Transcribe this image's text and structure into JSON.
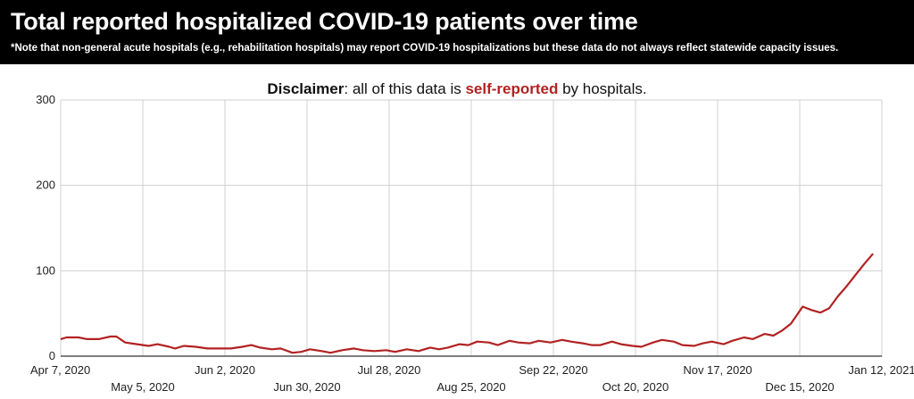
{
  "header": {
    "title": "Total reported hospitalized COVID-19 patients over time",
    "note": "*Note that non-general acute hospitals (e.g., rehabilitation hospitals) may report COVID-19 hospitalizations but these data do not always reflect statewide capacity issues."
  },
  "disclaimer": {
    "part1": "Disclaimer",
    "part2": ": all of this data is ",
    "part3": "self-reported",
    "part4": " by hospitals.",
    "emphasis_color": "#b22222"
  },
  "colors": {
    "header_bg": "#000000",
    "line": "#b22222",
    "grid": "#d0d0d0",
    "axis": "#333333"
  },
  "chart_data": {
    "type": "line",
    "title": "",
    "xlabel": "",
    "ylabel": "",
    "ylim": [
      0,
      300
    ],
    "y_ticks": [
      0,
      100,
      200,
      300
    ],
    "x_range": [
      "2020-04-07",
      "2021-01-12"
    ],
    "x_ticks": [
      {
        "date": "2020-04-07",
        "label": "Apr 7, 2020",
        "row": 0
      },
      {
        "date": "2020-05-05",
        "label": "May 5, 2020",
        "row": 1
      },
      {
        "date": "2020-06-02",
        "label": "Jun 2, 2020",
        "row": 0
      },
      {
        "date": "2020-06-30",
        "label": "Jun 30, 2020",
        "row": 1
      },
      {
        "date": "2020-07-28",
        "label": "Jul 28, 2020",
        "row": 0
      },
      {
        "date": "2020-08-25",
        "label": "Aug 25, 2020",
        "row": 1
      },
      {
        "date": "2020-09-22",
        "label": "Sep 22, 2020",
        "row": 0
      },
      {
        "date": "2020-10-20",
        "label": "Oct 20, 2020",
        "row": 1
      },
      {
        "date": "2020-11-17",
        "label": "Nov 17, 2020",
        "row": 0
      },
      {
        "date": "2020-12-15",
        "label": "Dec 15, 2020",
        "row": 1
      },
      {
        "date": "2021-01-12",
        "label": "Jan 12, 2021",
        "row": 0
      }
    ],
    "grid": true,
    "legend": "none",
    "series": [
      {
        "values": [
          [
            "2020-04-07",
            20
          ],
          [
            "2020-04-09",
            22
          ],
          [
            "2020-04-13",
            22
          ],
          [
            "2020-04-16",
            20
          ],
          [
            "2020-04-20",
            20
          ],
          [
            "2020-04-24",
            23
          ],
          [
            "2020-04-26",
            23
          ],
          [
            "2020-04-29",
            16
          ],
          [
            "2020-05-03",
            14
          ],
          [
            "2020-05-07",
            12
          ],
          [
            "2020-05-10",
            14
          ],
          [
            "2020-05-14",
            11
          ],
          [
            "2020-05-16",
            9
          ],
          [
            "2020-05-19",
            12
          ],
          [
            "2020-05-23",
            11
          ],
          [
            "2020-05-27",
            9
          ],
          [
            "2020-05-31",
            9
          ],
          [
            "2020-06-04",
            9
          ],
          [
            "2020-06-08",
            11
          ],
          [
            "2020-06-11",
            13
          ],
          [
            "2020-06-14",
            10
          ],
          [
            "2020-06-18",
            8
          ],
          [
            "2020-06-21",
            9
          ],
          [
            "2020-06-25",
            4
          ],
          [
            "2020-06-28",
            5
          ],
          [
            "2020-07-01",
            8
          ],
          [
            "2020-07-05",
            6
          ],
          [
            "2020-07-08",
            4
          ],
          [
            "2020-07-12",
            7
          ],
          [
            "2020-07-16",
            9
          ],
          [
            "2020-07-19",
            7
          ],
          [
            "2020-07-23",
            6
          ],
          [
            "2020-07-27",
            7
          ],
          [
            "2020-07-30",
            5
          ],
          [
            "2020-08-03",
            8
          ],
          [
            "2020-08-07",
            6
          ],
          [
            "2020-08-11",
            10
          ],
          [
            "2020-08-14",
            8
          ],
          [
            "2020-08-17",
            10
          ],
          [
            "2020-08-21",
            14
          ],
          [
            "2020-08-24",
            13
          ],
          [
            "2020-08-27",
            17
          ],
          [
            "2020-08-31",
            16
          ],
          [
            "2020-09-03",
            13
          ],
          [
            "2020-09-07",
            18
          ],
          [
            "2020-09-10",
            16
          ],
          [
            "2020-09-14",
            15
          ],
          [
            "2020-09-17",
            18
          ],
          [
            "2020-09-21",
            16
          ],
          [
            "2020-09-25",
            19
          ],
          [
            "2020-09-28",
            17
          ],
          [
            "2020-10-02",
            15
          ],
          [
            "2020-10-05",
            13
          ],
          [
            "2020-10-08",
            13
          ],
          [
            "2020-10-12",
            17
          ],
          [
            "2020-10-15",
            14
          ],
          [
            "2020-10-19",
            12
          ],
          [
            "2020-10-22",
            11
          ],
          [
            "2020-10-26",
            16
          ],
          [
            "2020-10-29",
            19
          ],
          [
            "2020-11-02",
            17
          ],
          [
            "2020-11-05",
            13
          ],
          [
            "2020-11-09",
            12
          ],
          [
            "2020-11-12",
            15
          ],
          [
            "2020-11-15",
            17
          ],
          [
            "2020-11-19",
            14
          ],
          [
            "2020-11-22",
            18
          ],
          [
            "2020-11-26",
            22
          ],
          [
            "2020-11-29",
            20
          ],
          [
            "2020-12-03",
            26
          ],
          [
            "2020-12-06",
            24
          ],
          [
            "2020-12-09",
            30
          ],
          [
            "2020-12-12",
            38
          ],
          [
            "2020-12-16",
            58
          ],
          [
            "2020-12-19",
            54
          ],
          [
            "2020-12-22",
            51
          ],
          [
            "2020-12-25",
            56
          ],
          [
            "2020-12-28",
            70
          ],
          [
            "2020-12-31",
            82
          ],
          [
            "2021-01-03",
            95
          ],
          [
            "2021-01-06",
            108
          ],
          [
            "2021-01-09",
            120
          ]
        ]
      }
    ]
  }
}
